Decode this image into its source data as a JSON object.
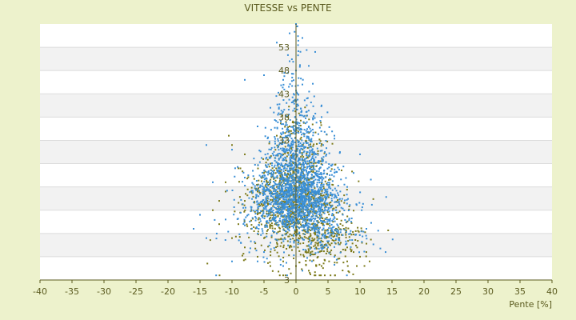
{
  "chart_data": {
    "type": "scatter",
    "title": "VITESSE vs PENTE",
    "xlabel": "Pente [%]",
    "ylabel": "",
    "xlim": [
      -40,
      40
    ],
    "ylim": [
      3,
      58
    ],
    "x_ticks": [
      "-40",
      "-35",
      "-30",
      "-25",
      "-20",
      "-15",
      "-10",
      "-5",
      "0",
      "5",
      "10",
      "15",
      "20",
      "25",
      "30",
      "35",
      "40"
    ],
    "y_ticks": [
      "3",
      "8",
      "13",
      "18",
      "23",
      "28",
      "33",
      "38",
      "43",
      "48",
      "53"
    ],
    "y_tick_labels_shown": [
      "3",
      "33",
      "38",
      "43",
      "48",
      "53"
    ],
    "grid": true,
    "series": [
      {
        "color": "#7c7a1a",
        "point_count": 1200,
        "points": [
          [
            -10.5,
            34
          ],
          [
            -10,
            32
          ],
          [
            -11,
            24
          ],
          [
            -12,
            20
          ],
          [
            -9,
            27
          ],
          [
            -8,
            30
          ],
          [
            -7,
            22
          ],
          [
            -6,
            18
          ],
          [
            -5,
            26
          ],
          [
            -4,
            28
          ],
          [
            -3,
            23
          ],
          [
            -2,
            21
          ],
          [
            -1,
            19
          ],
          [
            0,
            25
          ],
          [
            1,
            24
          ],
          [
            2,
            22
          ],
          [
            3,
            20
          ],
          [
            4,
            17
          ],
          [
            5,
            15
          ],
          [
            6,
            13
          ],
          [
            7,
            11
          ],
          [
            8,
            10
          ],
          [
            9,
            9
          ],
          [
            10,
            8
          ],
          [
            11,
            9
          ],
          [
            11.5,
            7
          ],
          [
            9.5,
            6
          ],
          [
            8,
            7
          ],
          [
            6,
            8
          ],
          [
            4,
            6
          ],
          [
            2,
            5
          ],
          [
            0,
            6
          ],
          [
            -2,
            7
          ],
          [
            -4,
            6
          ],
          [
            -6,
            8
          ],
          [
            -8,
            10
          ],
          [
            -10,
            12
          ],
          [
            -12,
            15
          ],
          [
            -13,
            18
          ],
          [
            -9,
            15
          ],
          [
            -7,
            14
          ],
          [
            -5,
            12
          ],
          [
            -3,
            11
          ],
          [
            -1,
            10
          ],
          [
            1,
            12
          ],
          [
            3,
            13
          ],
          [
            5,
            11
          ],
          [
            7,
            9
          ],
          [
            -2,
            30
          ],
          [
            -3,
            34
          ],
          [
            -1,
            36
          ],
          [
            1,
            32
          ],
          [
            2,
            28
          ],
          [
            3,
            26
          ],
          [
            -4,
            24
          ],
          [
            -6,
            22
          ],
          [
            -8,
            20
          ],
          [
            -11,
            22
          ]
        ]
      },
      {
        "color": "#3a8fd6",
        "point_count": 2200,
        "points": [
          [
            0,
            58
          ],
          [
            -1,
            56
          ],
          [
            1,
            55
          ],
          [
            -3,
            54
          ],
          [
            3,
            52
          ],
          [
            -1,
            50
          ],
          [
            2,
            49
          ],
          [
            0,
            48
          ],
          [
            -2,
            46
          ],
          [
            1,
            45
          ],
          [
            -5,
            47
          ],
          [
            -8,
            46
          ],
          [
            -4,
            40
          ],
          [
            4,
            38
          ],
          [
            -6,
            36
          ],
          [
            6,
            34
          ],
          [
            -2,
            33
          ],
          [
            2,
            32
          ],
          [
            -10,
            31
          ],
          [
            10,
            30
          ],
          [
            -14,
            32
          ],
          [
            -13,
            24
          ],
          [
            9,
            26
          ],
          [
            -8,
            25
          ],
          [
            8,
            23
          ],
          [
            -15,
            17
          ],
          [
            -16,
            14
          ],
          [
            -14,
            12
          ],
          [
            -11,
            16
          ],
          [
            11,
            14
          ],
          [
            14,
            9
          ],
          [
            -10,
            7
          ],
          [
            -2,
            6
          ],
          [
            1,
            5
          ],
          [
            0,
            20
          ],
          [
            1,
            21
          ],
          [
            -1,
            22
          ],
          [
            0,
            23
          ],
          [
            2,
            24
          ],
          [
            -2,
            25
          ],
          [
            1,
            19
          ],
          [
            -1,
            18
          ],
          [
            0,
            17
          ],
          [
            2,
            16
          ],
          [
            -2,
            15
          ],
          [
            3,
            14
          ],
          [
            -3,
            13
          ],
          [
            4,
            12
          ],
          [
            -4,
            11
          ],
          [
            5,
            10
          ],
          [
            -5,
            9
          ],
          [
            6,
            8
          ],
          [
            -6,
            7
          ],
          [
            0,
            28
          ],
          [
            1,
            29
          ],
          [
            -1,
            27
          ],
          [
            0,
            30
          ],
          [
            2,
            26
          ],
          [
            -3,
            21
          ]
        ]
      }
    ]
  }
}
